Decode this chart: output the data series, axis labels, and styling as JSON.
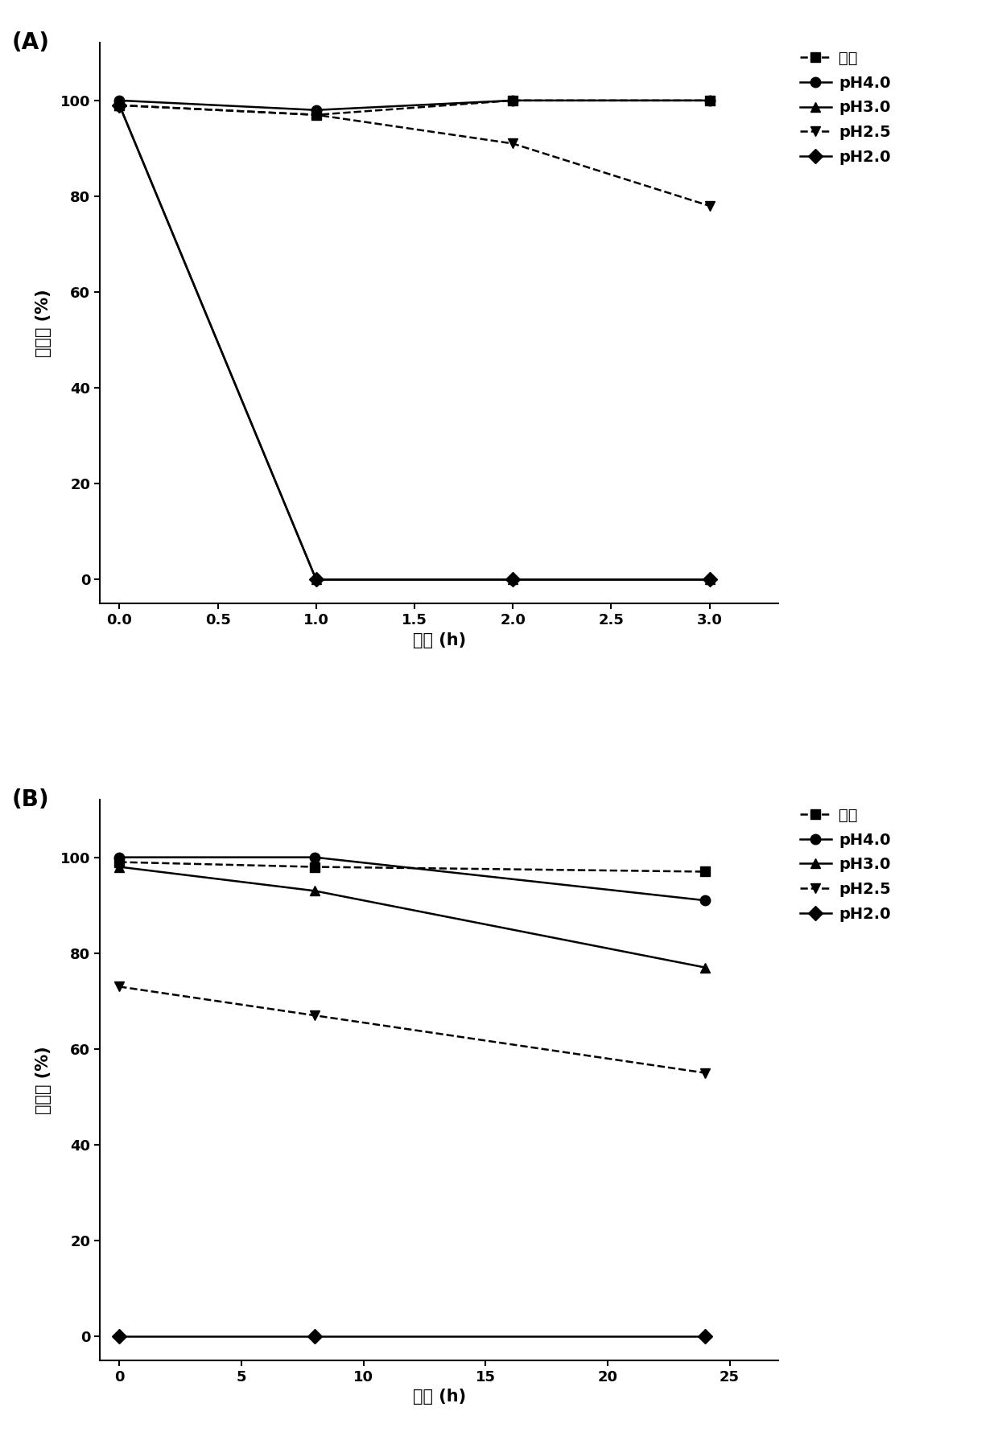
{
  "panel_A": {
    "label": "(A)",
    "xlabel": "时间 (h)",
    "ylabel": "存活率 (%)",
    "xlim": [
      -0.1,
      3.35
    ],
    "ylim": [
      -5,
      112
    ],
    "xticks": [
      0.0,
      0.5,
      1.0,
      1.5,
      2.0,
      2.5,
      3.0
    ],
    "yticks": [
      0,
      20,
      40,
      60,
      80,
      100
    ],
    "series": [
      {
        "label": "对照",
        "x": [
          0,
          1,
          2,
          3
        ],
        "y": [
          99,
          97,
          100,
          100
        ],
        "marker": "s",
        "linestyle": "--",
        "color": "black"
      },
      {
        "label": "pH4.0",
        "x": [
          0,
          1,
          2,
          3
        ],
        "y": [
          100,
          98,
          100,
          100
        ],
        "marker": "o",
        "linestyle": "-",
        "color": "black"
      },
      {
        "label": "pH3.0",
        "x": [
          0,
          1,
          2,
          3
        ],
        "y": [
          99,
          0,
          0,
          0
        ],
        "marker": "^",
        "linestyle": "-",
        "color": "black"
      },
      {
        "label": "pH2.5",
        "x": [
          0,
          1,
          2,
          3
        ],
        "y": [
          99,
          97,
          91,
          78
        ],
        "marker": "v",
        "linestyle": "--",
        "color": "black"
      },
      {
        "label": "pH2.0",
        "x": [
          0,
          1,
          2,
          3
        ],
        "y": [
          99,
          0,
          0,
          0
        ],
        "marker": "D",
        "linestyle": "-",
        "color": "black"
      }
    ]
  },
  "panel_B": {
    "label": "(B)",
    "xlabel": "时间 (h)",
    "ylabel": "存活率 (%)",
    "xlim": [
      -0.8,
      27
    ],
    "ylim": [
      -5,
      112
    ],
    "xticks": [
      0,
      5,
      10,
      15,
      20,
      25
    ],
    "yticks": [
      0,
      20,
      40,
      60,
      80,
      100
    ],
    "series": [
      {
        "label": "对照",
        "x": [
          0,
          8,
          24
        ],
        "y": [
          99,
          98,
          97
        ],
        "marker": "s",
        "linestyle": "--",
        "color": "black"
      },
      {
        "label": "pH4.0",
        "x": [
          0,
          8,
          24
        ],
        "y": [
          100,
          100,
          91
        ],
        "marker": "o",
        "linestyle": "-",
        "color": "black"
      },
      {
        "label": "pH3.0",
        "x": [
          0,
          8,
          24
        ],
        "y": [
          98,
          93,
          77
        ],
        "marker": "^",
        "linestyle": "-",
        "color": "black"
      },
      {
        "label": "pH2.5",
        "x": [
          0,
          8,
          24
        ],
        "y": [
          73,
          67,
          55
        ],
        "marker": "v",
        "linestyle": "--",
        "color": "black"
      },
      {
        "label": "pH2.0",
        "x": [
          0,
          8,
          24
        ],
        "y": [
          0,
          0,
          0
        ],
        "marker": "D",
        "linestyle": "-",
        "color": "black"
      }
    ]
  }
}
